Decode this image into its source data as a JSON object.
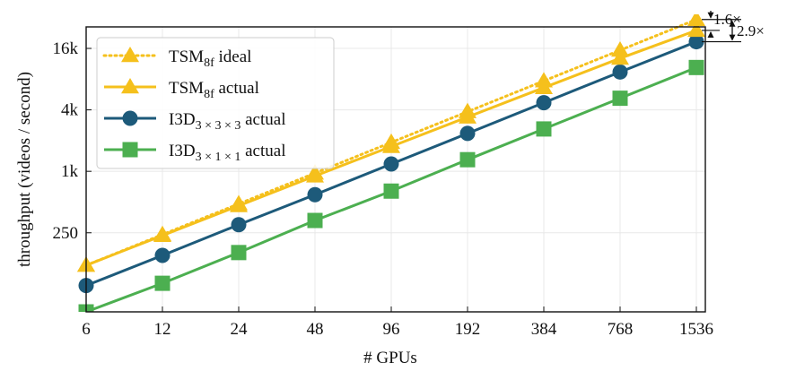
{
  "chart_data": {
    "type": "line",
    "xlabel": "# GPUs",
    "ylabel": "throughput (videos / second)",
    "x_categories": [
      "6",
      "12",
      "24",
      "48",
      "96",
      "192",
      "384",
      "768",
      "1536"
    ],
    "y_scale": "log2",
    "y_ticks": [
      {
        "value": 250,
        "label": "250"
      },
      {
        "value": 1000,
        "label": "1k"
      },
      {
        "value": 4000,
        "label": "4k"
      },
      {
        "value": 16000,
        "label": "16k"
      }
    ],
    "ylim": [
      42,
      26000
    ],
    "grid": true,
    "legend_position": "top-left",
    "series": [
      {
        "id": "tsm-ideal",
        "name": "TSM",
        "sub": "8f",
        "suffix": " ideal",
        "color": "#f5c01c",
        "marker": "triangle",
        "dashed": true,
        "values": [
          120,
          240,
          480,
          960,
          1920,
          3840,
          7680,
          15360,
          30720
        ]
      },
      {
        "id": "tsm-actual",
        "name": "TSM",
        "sub": "8f",
        "suffix": " actual",
        "color": "#f5c01c",
        "marker": "triangle",
        "dashed": false,
        "values": [
          120,
          235,
          460,
          900,
          1750,
          3400,
          6600,
          12800,
          24000
        ]
      },
      {
        "id": "i3d-333",
        "name": "I3D",
        "sub": "3 × 3 × 3",
        "suffix": " actual",
        "color": "#1d5a7a",
        "marker": "circle",
        "dashed": false,
        "values": [
          76,
          150,
          300,
          590,
          1180,
          2350,
          4700,
          9400,
          18600
        ]
      },
      {
        "id": "i3d-311",
        "name": "I3D",
        "sub": "3 × 1 × 1",
        "suffix": " actual",
        "color": "#4caf50",
        "marker": "square",
        "dashed": false,
        "values": [
          42,
          80,
          160,
          330,
          640,
          1300,
          2600,
          5200,
          10400
        ]
      }
    ],
    "annotations": [
      {
        "label": "1.6×",
        "from_series": "tsm-ideal",
        "to_series": "tsm-actual"
      },
      {
        "label": "2.9×",
        "from_series": "tsm-ideal",
        "to_series": "i3d-333"
      }
    ]
  }
}
